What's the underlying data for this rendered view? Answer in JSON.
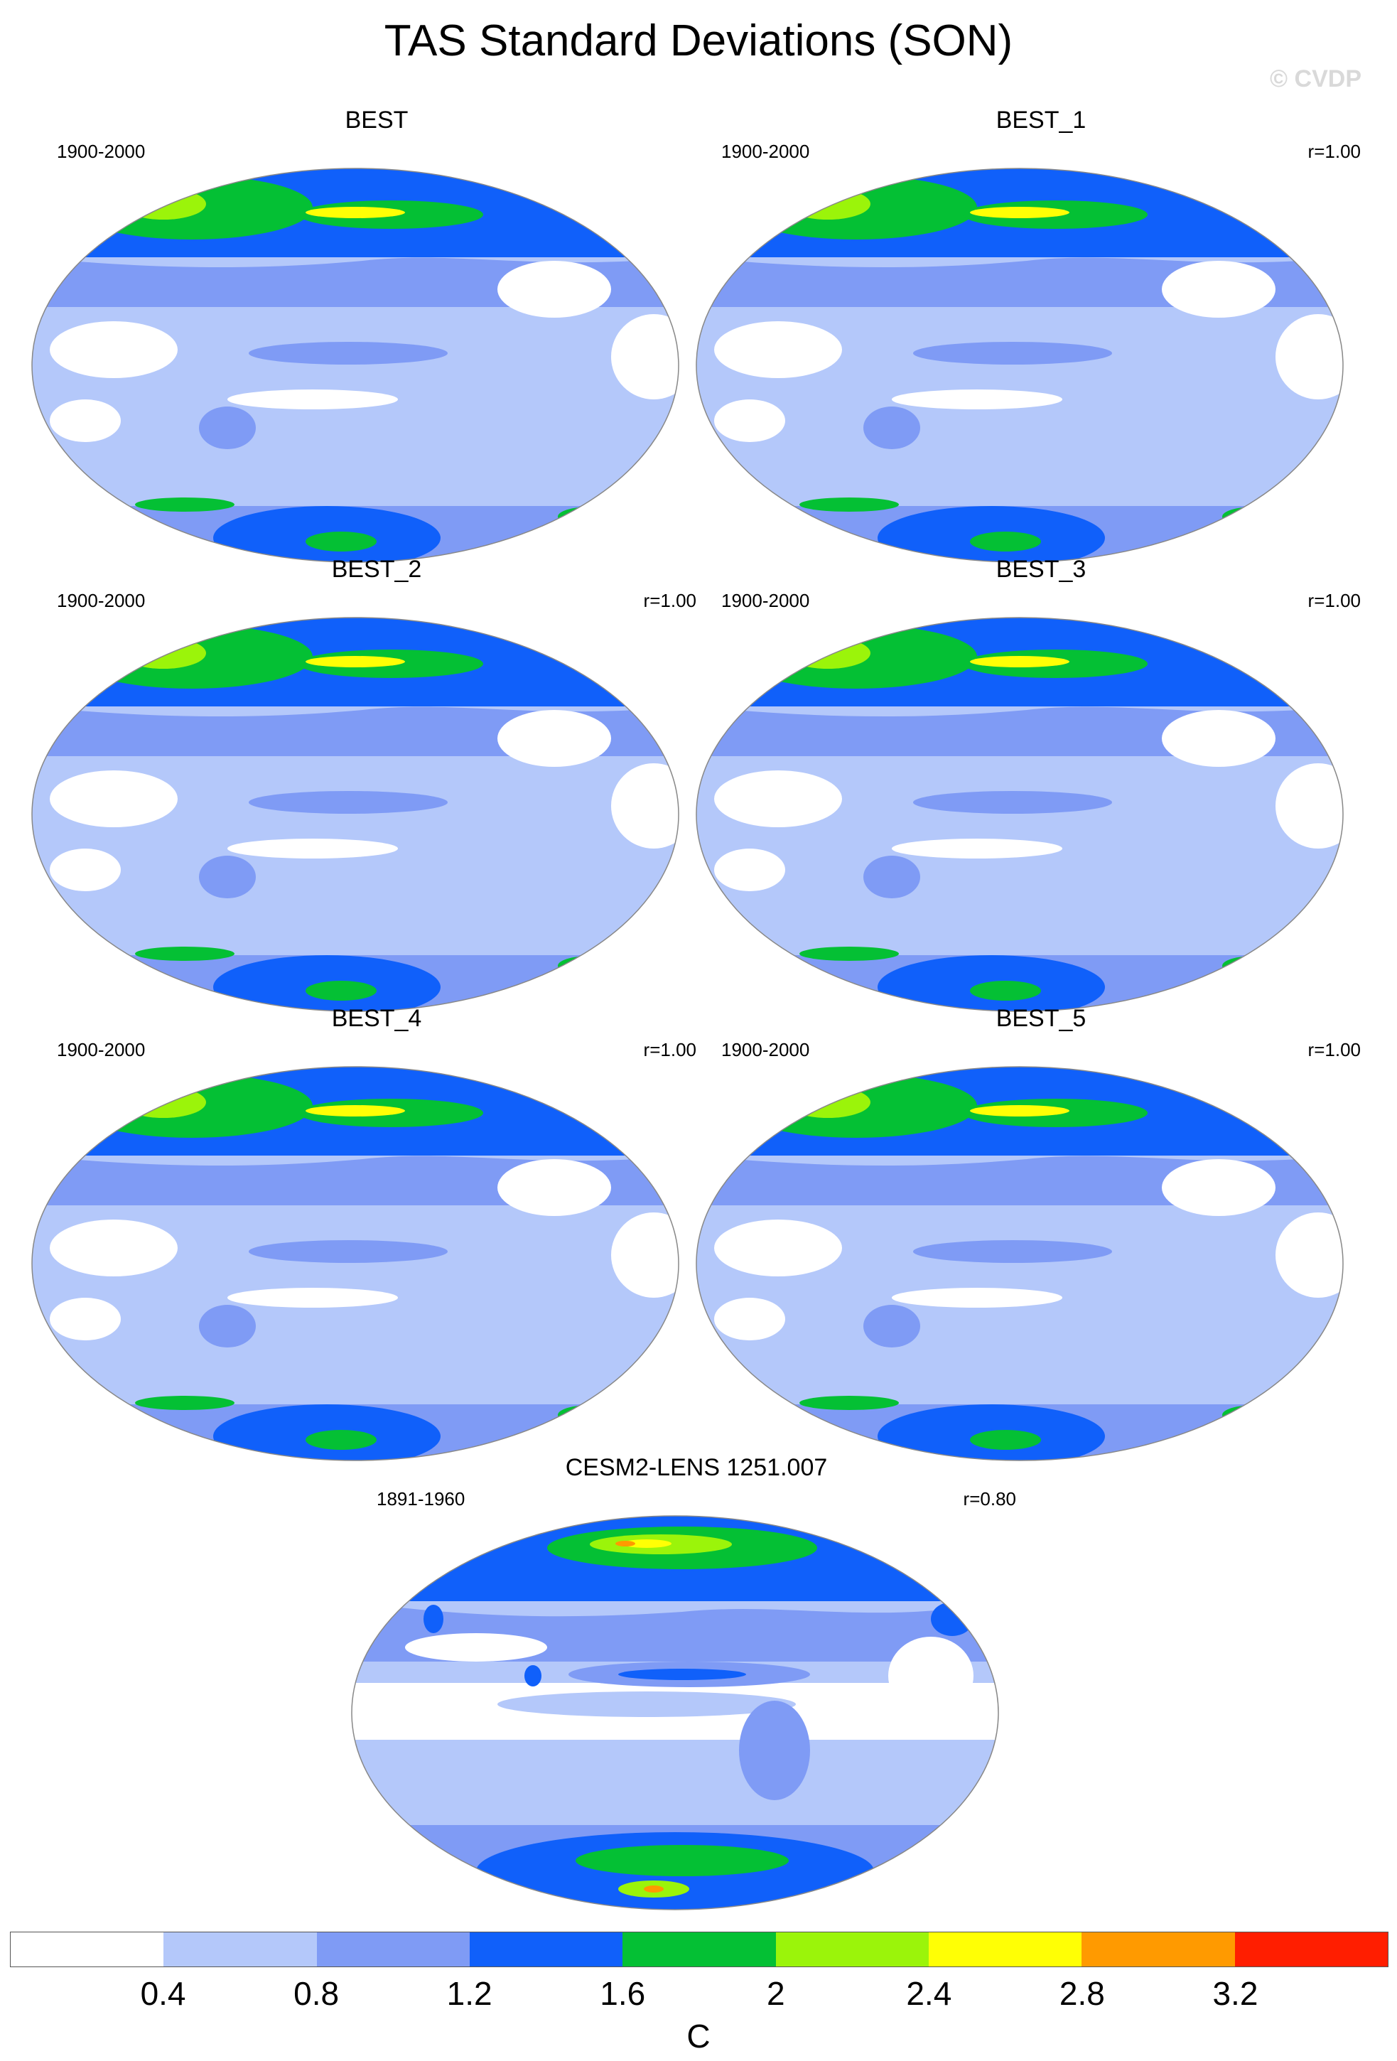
{
  "title": "TAS Standard Deviations (SON)",
  "watermark": "© CVDP",
  "panels": [
    {
      "title": "BEST",
      "period": "1900-2000",
      "corr": ""
    },
    {
      "title": "BEST_1",
      "period": "1900-2000",
      "corr": "r=1.00"
    },
    {
      "title": "BEST_2",
      "period": "1900-2000",
      "corr": "r=1.00"
    },
    {
      "title": "BEST_3",
      "period": "1900-2000",
      "corr": "r=1.00"
    },
    {
      "title": "BEST_4",
      "period": "1900-2000",
      "corr": "r=1.00"
    },
    {
      "title": "BEST_5",
      "period": "1900-2000",
      "corr": "r=1.00"
    },
    {
      "title": "CESM2-LENS 1251.007",
      "period": "1891-1960",
      "corr": "r=0.80"
    }
  ],
  "colorbar": {
    "colors": [
      "#ffffff",
      "#b4c8fa",
      "#7f9bf5",
      "#1060fa",
      "#04c034",
      "#9bf40a",
      "#ffff05",
      "#ff9a00",
      "#ff1e00"
    ],
    "labels": [
      "0.4",
      "0.8",
      "1.2",
      "1.6",
      "2",
      "2.4",
      "2.8",
      "3.2"
    ],
    "unit": "C"
  }
}
